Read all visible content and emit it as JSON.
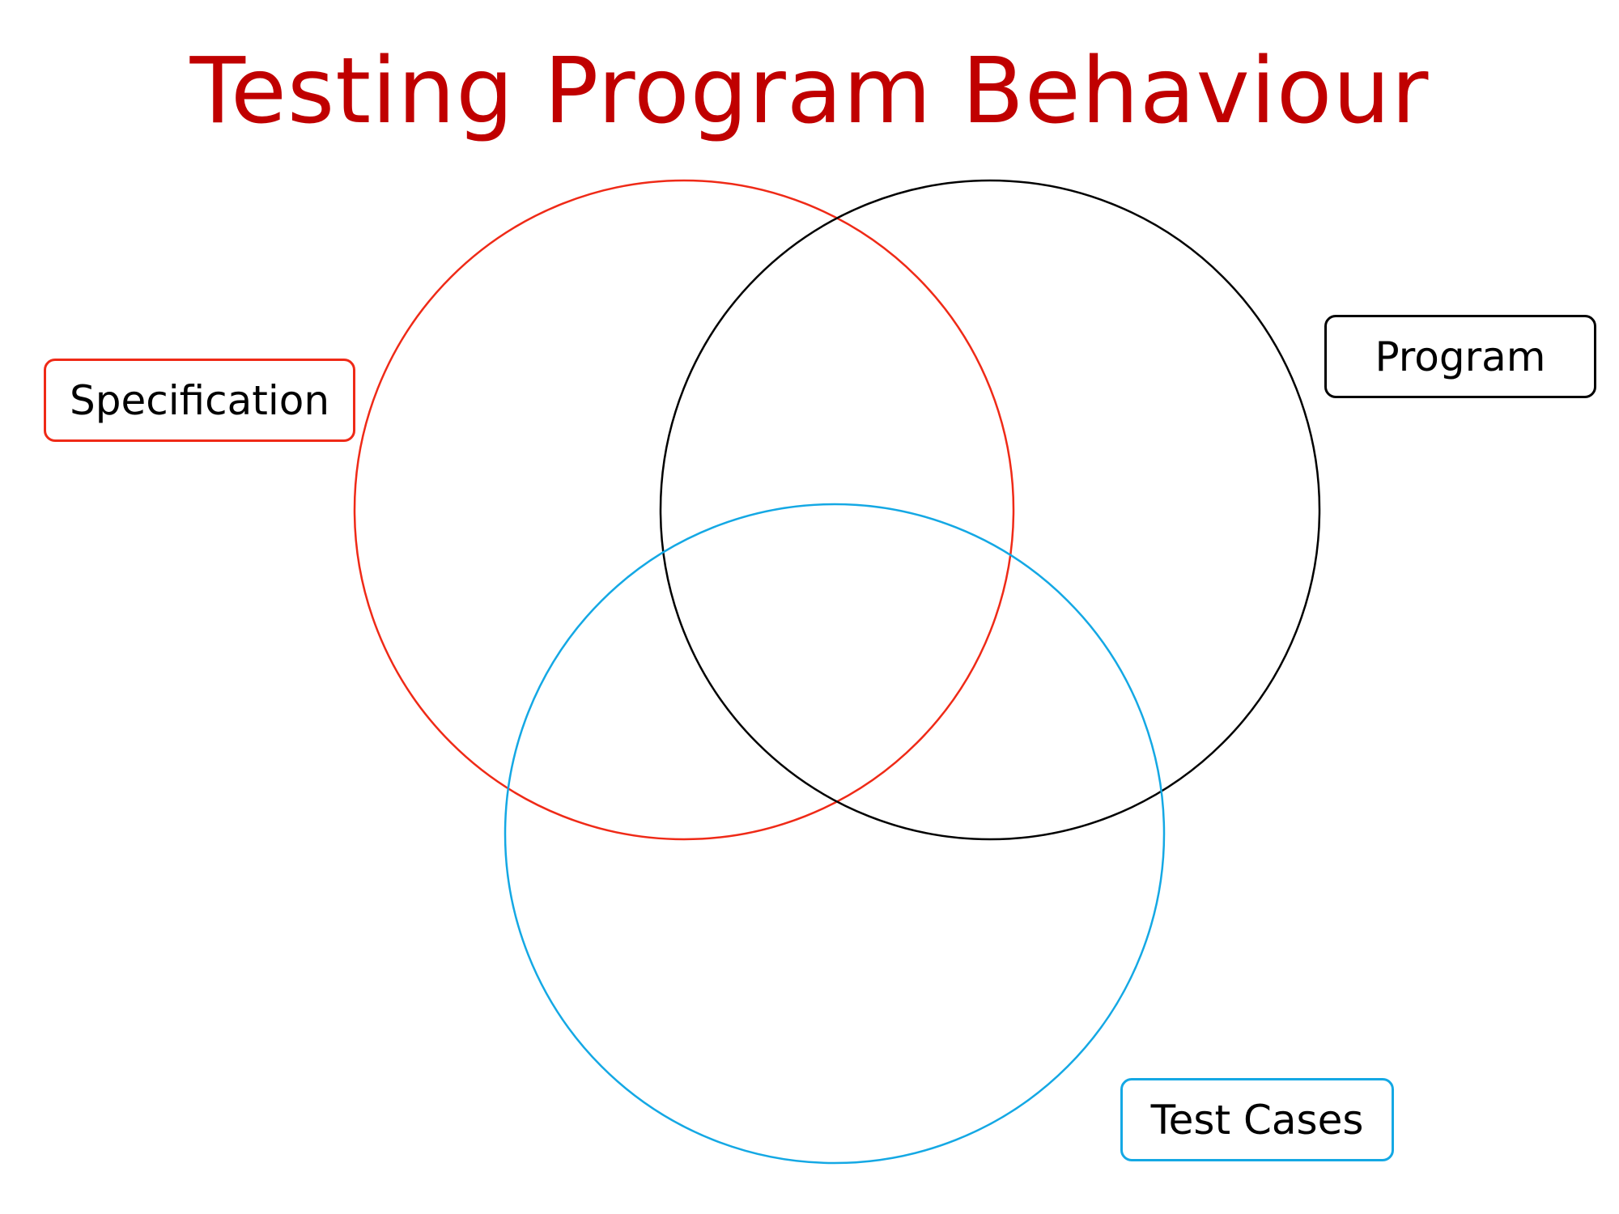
{
  "title": "Testing Program Behaviour",
  "colors": {
    "title": "#c00000",
    "specification": "#ef2a17",
    "program": "#000000",
    "test_cases": "#14a8e4"
  },
  "sets": [
    {
      "label": "Specification",
      "color": "#ef2a17"
    },
    {
      "label": "Program",
      "color": "#000000"
    },
    {
      "label": "Test Cases",
      "color": "#14a8e4"
    }
  ]
}
